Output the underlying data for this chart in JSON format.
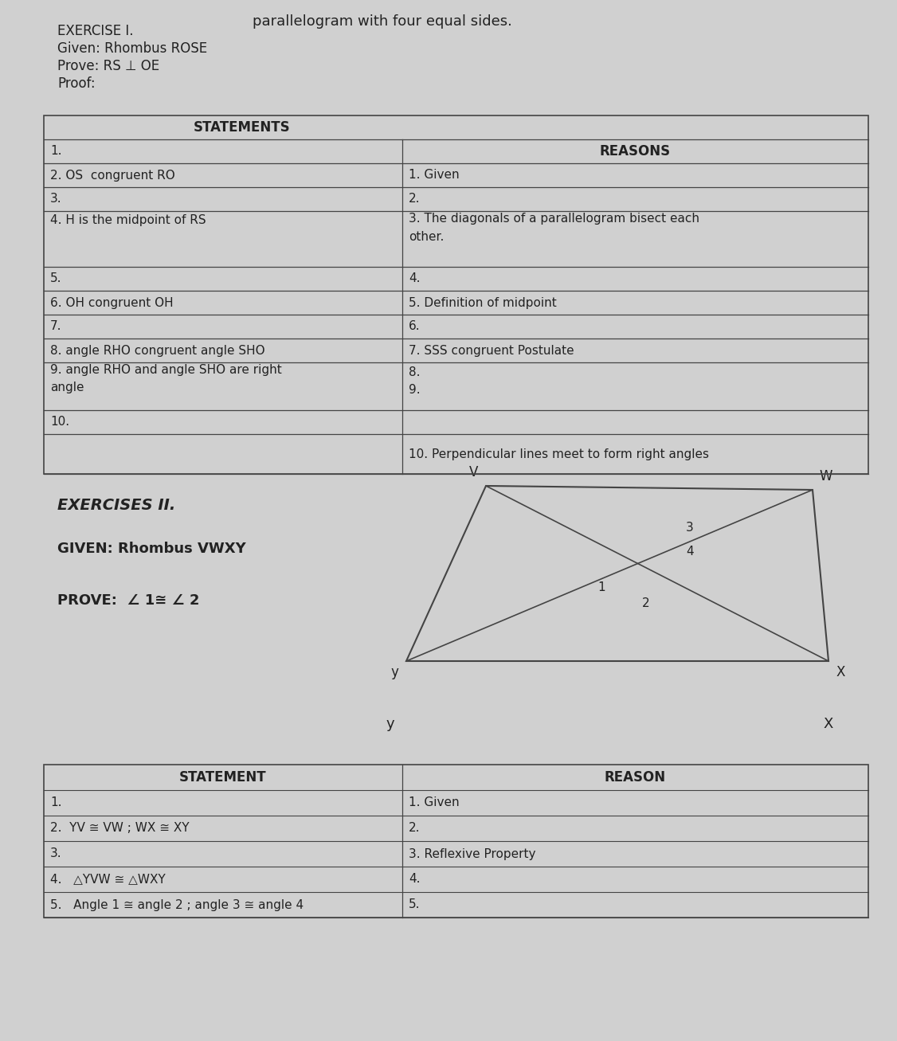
{
  "bg_color": "#d0d0d0",
  "title_top_text": "parallelogram with four equal sides.",
  "ex1_header": "EXERCISE I.",
  "ex1_given": "Given: Rhombus ROSE",
  "ex1_prove": "Prove: RS ⊥ OE",
  "ex1_proof": "Proof:",
  "table1_statements_header": "STATEMENTS",
  "table1_reasons_header": "REASONS",
  "ex2_header": "EXERCISES II.",
  "ex2_given": "GIVEN: Rhombus VWXY",
  "ex2_prove": "PROVE:  ∠ 1≅ ∠ 2",
  "table2_statement_header": "STATEMENT",
  "table2_reason_header": "REASON",
  "line_color": "#444444",
  "text_color": "#222222"
}
